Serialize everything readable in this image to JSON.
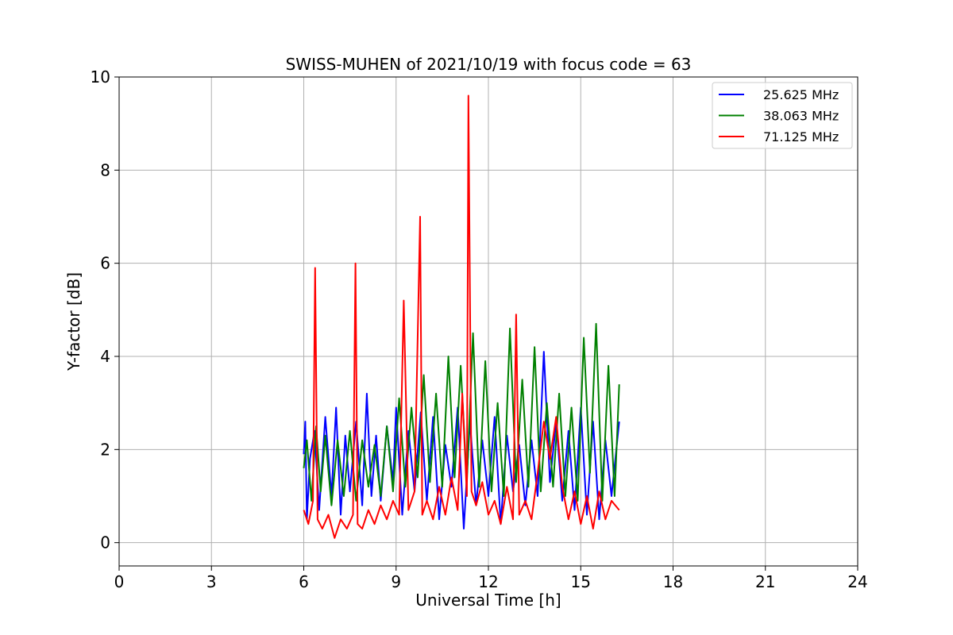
{
  "chart_data": {
    "type": "line",
    "title": "SWISS-MUHEN of 2021/10/19 with focus code = 63",
    "xlabel": "Universal Time [h]",
    "ylabel": "Y-factor [dB]",
    "xlim": [
      0,
      24
    ],
    "ylim": [
      -0.5,
      10
    ],
    "xticks": [
      0,
      3,
      6,
      9,
      12,
      15,
      18,
      21,
      24
    ],
    "yticks": [
      0,
      2,
      4,
      6,
      8,
      10
    ],
    "grid": true,
    "legend_position": "top-right",
    "series": [
      {
        "name": "25.625 MHz",
        "color": "#0000ff",
        "x": [
          6.0,
          6.05,
          6.1,
          6.2,
          6.35,
          6.5,
          6.7,
          6.9,
          7.05,
          7.2,
          7.35,
          7.5,
          7.7,
          7.9,
          8.05,
          8.2,
          8.35,
          8.5,
          8.7,
          8.9,
          9.0,
          9.2,
          9.4,
          9.6,
          9.8,
          10.0,
          10.2,
          10.4,
          10.6,
          10.8,
          11.0,
          11.2,
          11.4,
          11.6,
          11.8,
          12.0,
          12.2,
          12.4,
          12.6,
          12.8,
          13.0,
          13.2,
          13.4,
          13.6,
          13.8,
          14.0,
          14.2,
          14.4,
          14.6,
          14.8,
          15.0,
          15.2,
          15.4,
          15.6,
          15.8,
          16.0,
          16.25
        ],
        "y": [
          1.9,
          2.6,
          0.5,
          1.8,
          2.4,
          0.7,
          2.7,
          1.0,
          2.9,
          0.6,
          2.3,
          1.1,
          2.6,
          0.8,
          3.2,
          1.0,
          2.3,
          0.9,
          2.5,
          1.3,
          2.9,
          0.6,
          2.4,
          1.1,
          2.8,
          0.9,
          2.7,
          0.5,
          2.1,
          1.2,
          2.9,
          0.3,
          2.6,
          0.8,
          2.2,
          1.0,
          2.7,
          0.4,
          2.3,
          1.1,
          2.1,
          0.8,
          2.2,
          1.0,
          4.1,
          1.3,
          2.6,
          0.9,
          2.4,
          0.7,
          2.9,
          0.6,
          2.6,
          0.5,
          2.2,
          1.0,
          2.6
        ]
      },
      {
        "name": "38.063 MHz",
        "color": "#008000",
        "x": [
          6.0,
          6.1,
          6.25,
          6.4,
          6.55,
          6.7,
          6.9,
          7.1,
          7.3,
          7.5,
          7.7,
          7.9,
          8.1,
          8.3,
          8.5,
          8.7,
          8.9,
          9.1,
          9.3,
          9.5,
          9.7,
          9.9,
          10.1,
          10.3,
          10.5,
          10.7,
          10.9,
          11.1,
          11.3,
          11.5,
          11.7,
          11.9,
          12.1,
          12.3,
          12.5,
          12.7,
          12.9,
          13.1,
          13.3,
          13.5,
          13.7,
          13.9,
          14.1,
          14.3,
          14.5,
          14.7,
          14.9,
          15.1,
          15.3,
          15.5,
          15.7,
          15.9,
          16.1,
          16.25
        ],
        "y": [
          1.6,
          2.2,
          0.9,
          2.5,
          1.1,
          2.3,
          0.8,
          2.2,
          1.0,
          2.4,
          0.9,
          2.2,
          1.2,
          2.1,
          1.0,
          2.5,
          1.1,
          3.1,
          1.2,
          2.9,
          1.4,
          3.6,
          1.3,
          3.2,
          1.2,
          4.0,
          1.4,
          3.8,
          1.3,
          4.5,
          1.2,
          3.9,
          1.1,
          3.0,
          1.0,
          4.6,
          1.3,
          3.5,
          1.2,
          4.2,
          1.1,
          3.0,
          1.2,
          3.2,
          1.0,
          2.9,
          0.9,
          4.4,
          1.5,
          4.7,
          0.9,
          3.8,
          1.0,
          3.4
        ]
      },
      {
        "name": "71.125 MHz",
        "color": "#ff0000",
        "x": [
          6.0,
          6.15,
          6.3,
          6.37,
          6.45,
          6.6,
          6.8,
          7.0,
          7.2,
          7.4,
          7.6,
          7.68,
          7.75,
          7.9,
          8.1,
          8.3,
          8.5,
          8.7,
          8.9,
          9.1,
          9.25,
          9.4,
          9.6,
          9.78,
          9.85,
          10.0,
          10.2,
          10.4,
          10.6,
          10.8,
          11.0,
          11.15,
          11.3,
          11.35,
          11.45,
          11.6,
          11.8,
          12.0,
          12.2,
          12.4,
          12.6,
          12.8,
          12.9,
          13.0,
          13.2,
          13.4,
          13.6,
          13.8,
          14.0,
          14.2,
          14.4,
          14.6,
          14.8,
          15.0,
          15.2,
          15.4,
          15.6,
          15.8,
          16.0,
          16.25
        ],
        "y": [
          0.7,
          0.4,
          0.9,
          5.9,
          0.5,
          0.3,
          0.6,
          0.1,
          0.5,
          0.3,
          0.6,
          6.0,
          0.4,
          0.3,
          0.7,
          0.4,
          0.8,
          0.5,
          0.9,
          0.6,
          5.2,
          0.7,
          1.1,
          7.0,
          0.6,
          0.9,
          0.5,
          1.2,
          0.6,
          1.4,
          0.7,
          3.2,
          1.0,
          9.6,
          1.1,
          0.8,
          1.3,
          0.6,
          0.9,
          0.4,
          1.2,
          0.5,
          4.9,
          0.6,
          0.9,
          0.5,
          1.5,
          2.6,
          1.8,
          2.7,
          1.2,
          0.5,
          1.1,
          0.4,
          1.0,
          0.3,
          1.1,
          0.5,
          0.9,
          0.7
        ]
      }
    ]
  }
}
